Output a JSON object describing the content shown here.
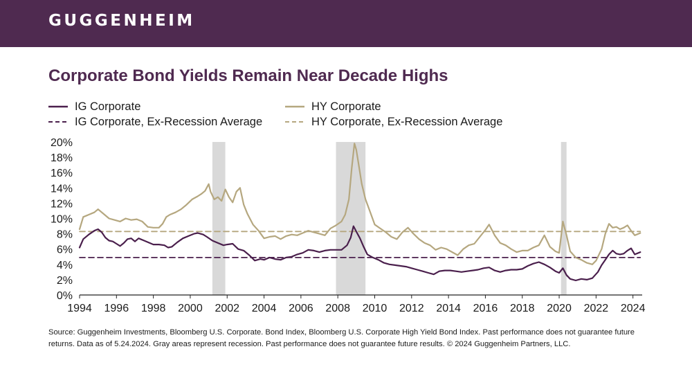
{
  "header": {
    "brand": "GUGGENHEIM"
  },
  "title": "Corporate Bond Yields Remain Near Decade Highs",
  "source_note": "Source: Guggenheim Investments, Bloomberg U.S. Corporate. Bond Index, Bloomberg U.S. Corporate High Yield Bond Index. Past performance does not guarantee future returns. Data as of 5.24.2024. Gray areas represent recession. Past performance does not guarantee future results. © 2024 Guggenheim Partners, LLC.",
  "colors": {
    "brand": "#4f2a50",
    "ig": "#4a1f4c",
    "hy": "#b5a77f",
    "recession": "#d9d9d9"
  },
  "chart_data": {
    "type": "line",
    "title": "Corporate Bond Yields Remain Near Decade Highs",
    "xlabel": "",
    "ylabel": "",
    "xlim": [
      1994,
      2024.5
    ],
    "ylim": [
      0,
      20
    ],
    "x_ticks": [
      1994,
      1996,
      1998,
      2000,
      2002,
      2004,
      2006,
      2008,
      2010,
      2012,
      2014,
      2016,
      2018,
      2020,
      2022,
      2024
    ],
    "x_tick_labels": [
      "1994",
      "1996",
      "1998",
      "2000",
      "2002",
      "2004",
      "2006",
      "2008",
      "2010",
      "2012",
      "2014",
      "2016",
      "2018",
      "2020",
      "2022",
      "2024"
    ],
    "y_ticks": [
      0,
      2,
      4,
      6,
      8,
      10,
      12,
      14,
      16,
      18,
      20
    ],
    "y_tick_labels": [
      "0%",
      "2%",
      "4%",
      "6%",
      "8%",
      "10%",
      "12%",
      "14%",
      "16%",
      "18%",
      "20%"
    ],
    "grid": false,
    "legend_position": "top",
    "recessions": [
      [
        2001.2,
        2001.9
      ],
      [
        2007.9,
        2009.5
      ],
      [
        2020.1,
        2020.4
      ]
    ],
    "series": [
      {
        "name": "IG Corporate",
        "style": "solid",
        "color": "#4a1f4c",
        "x": [
          1994.0,
          1994.2,
          1994.5,
          1994.8,
          1995.0,
          1995.2,
          1995.4,
          1995.6,
          1995.8,
          1996.0,
          1996.2,
          1996.4,
          1996.6,
          1996.8,
          1997.0,
          1997.2,
          1997.5,
          1997.8,
          1998.0,
          1998.3,
          1998.6,
          1998.8,
          1999.0,
          1999.3,
          1999.6,
          1999.9,
          2000.2,
          2000.4,
          2000.7,
          2000.9,
          2001.2,
          2001.5,
          2001.8,
          2002.0,
          2002.3,
          2002.6,
          2002.9,
          2003.2,
          2003.5,
          2003.8,
          2004.0,
          2004.3,
          2004.6,
          2004.9,
          2005.2,
          2005.5,
          2005.8,
          2006.1,
          2006.4,
          2006.7,
          2007.0,
          2007.3,
          2007.6,
          2007.9,
          2008.2,
          2008.5,
          2008.7,
          2008.85,
          2009.0,
          2009.2,
          2009.4,
          2009.6,
          2009.9,
          2010.2,
          2010.5,
          2010.8,
          2011.1,
          2011.4,
          2011.7,
          2012.0,
          2012.3,
          2012.6,
          2012.9,
          2013.2,
          2013.5,
          2013.8,
          2014.1,
          2014.4,
          2014.7,
          2015.0,
          2015.3,
          2015.6,
          2015.9,
          2016.2,
          2016.5,
          2016.8,
          2017.1,
          2017.4,
          2017.7,
          2018.0,
          2018.3,
          2018.6,
          2018.9,
          2019.2,
          2019.5,
          2019.8,
          2020.0,
          2020.2,
          2020.4,
          2020.6,
          2020.9,
          2021.2,
          2021.5,
          2021.8,
          2022.1,
          2022.3,
          2022.5,
          2022.7,
          2022.9,
          2023.1,
          2023.3,
          2023.5,
          2023.7,
          2023.9,
          2024.1,
          2024.3,
          2024.4
        ],
        "y": [
          6.2,
          7.3,
          7.9,
          8.4,
          8.6,
          8.2,
          7.5,
          7.1,
          7.0,
          6.7,
          6.4,
          6.8,
          7.3,
          7.4,
          7.0,
          7.4,
          7.1,
          6.8,
          6.6,
          6.6,
          6.5,
          6.2,
          6.3,
          6.9,
          7.4,
          7.7,
          8.0,
          8.1,
          7.9,
          7.6,
          7.1,
          6.8,
          6.5,
          6.6,
          6.7,
          6.0,
          5.8,
          5.2,
          4.5,
          4.7,
          4.6,
          4.9,
          4.7,
          4.6,
          4.9,
          5.0,
          5.3,
          5.5,
          5.9,
          5.8,
          5.6,
          5.8,
          5.9,
          5.9,
          5.9,
          6.5,
          7.5,
          9.0,
          8.3,
          7.4,
          6.3,
          5.3,
          4.9,
          4.6,
          4.2,
          4.0,
          3.9,
          3.8,
          3.7,
          3.5,
          3.3,
          3.1,
          2.9,
          2.7,
          3.1,
          3.2,
          3.2,
          3.1,
          3.0,
          3.1,
          3.2,
          3.3,
          3.5,
          3.6,
          3.2,
          3.0,
          3.2,
          3.3,
          3.3,
          3.4,
          3.8,
          4.1,
          4.3,
          4.0,
          3.6,
          3.1,
          2.9,
          3.5,
          2.6,
          2.1,
          1.9,
          2.1,
          2.0,
          2.2,
          3.0,
          3.9,
          4.6,
          5.3,
          5.8,
          5.4,
          5.3,
          5.4,
          5.8,
          6.1,
          5.3,
          5.5,
          5.6
        ]
      },
      {
        "name": "HY Corporate",
        "style": "solid",
        "color": "#b5a77f",
        "x": [
          1994.0,
          1994.2,
          1994.5,
          1994.8,
          1995.0,
          1995.3,
          1995.6,
          1995.9,
          1996.2,
          1996.5,
          1996.8,
          1997.1,
          1997.4,
          1997.7,
          1998.0,
          1998.3,
          1998.5,
          1998.7,
          1998.9,
          1999.2,
          1999.5,
          1999.8,
          2000.1,
          2000.4,
          2000.6,
          2000.8,
          2001.0,
          2001.1,
          2001.3,
          2001.5,
          2001.7,
          2001.9,
          2002.1,
          2002.3,
          2002.5,
          2002.7,
          2002.9,
          2003.1,
          2003.4,
          2003.7,
          2004.0,
          2004.3,
          2004.6,
          2004.9,
          2005.2,
          2005.5,
          2005.8,
          2006.1,
          2006.4,
          2006.7,
          2007.0,
          2007.3,
          2007.6,
          2007.9,
          2008.2,
          2008.4,
          2008.6,
          2008.75,
          2008.9,
          2009.0,
          2009.1,
          2009.3,
          2009.5,
          2009.7,
          2010.0,
          2010.3,
          2010.6,
          2010.9,
          2011.2,
          2011.5,
          2011.8,
          2012.1,
          2012.4,
          2012.7,
          2013.0,
          2013.3,
          2013.6,
          2013.9,
          2014.2,
          2014.5,
          2014.8,
          2015.1,
          2015.4,
          2015.7,
          2016.0,
          2016.2,
          2016.5,
          2016.8,
          2017.1,
          2017.4,
          2017.7,
          2018.0,
          2018.3,
          2018.6,
          2018.9,
          2019.2,
          2019.5,
          2019.8,
          2020.0,
          2020.2,
          2020.4,
          2020.6,
          2020.9,
          2021.2,
          2021.5,
          2021.8,
          2022.0,
          2022.3,
          2022.5,
          2022.7,
          2022.9,
          2023.1,
          2023.3,
          2023.5,
          2023.7,
          2023.9,
          2024.1,
          2024.3,
          2024.4
        ],
        "y": [
          8.6,
          10.2,
          10.5,
          10.8,
          11.2,
          10.6,
          10.0,
          9.8,
          9.6,
          10.0,
          9.8,
          9.9,
          9.6,
          8.9,
          8.8,
          8.8,
          9.3,
          10.2,
          10.5,
          10.8,
          11.2,
          11.8,
          12.5,
          12.9,
          13.2,
          13.6,
          14.5,
          13.5,
          12.5,
          12.8,
          12.3,
          13.8,
          12.8,
          12.1,
          13.5,
          14.0,
          11.8,
          10.6,
          9.2,
          8.4,
          7.4,
          7.6,
          7.7,
          7.3,
          7.7,
          7.9,
          7.8,
          8.1,
          8.4,
          8.2,
          8.0,
          7.8,
          8.7,
          9.1,
          9.6,
          10.5,
          12.5,
          16.5,
          19.8,
          19.0,
          17.5,
          14.5,
          12.5,
          11.2,
          9.2,
          8.7,
          8.2,
          7.6,
          7.3,
          8.2,
          8.8,
          8.0,
          7.3,
          6.8,
          6.5,
          5.9,
          6.2,
          6.0,
          5.6,
          5.2,
          6.0,
          6.5,
          6.7,
          7.6,
          8.5,
          9.2,
          7.8,
          6.8,
          6.5,
          6.0,
          5.6,
          5.8,
          5.8,
          6.2,
          6.5,
          7.8,
          6.3,
          5.7,
          5.5,
          9.6,
          7.8,
          5.7,
          4.9,
          4.6,
          4.2,
          4.0,
          4.5,
          6.0,
          8.0,
          9.3,
          8.8,
          8.9,
          8.6,
          8.8,
          9.1,
          8.4,
          7.8,
          8.0,
          8.1
        ]
      },
      {
        "name": "IG Corporate, Ex-Recession Average",
        "style": "dashed",
        "color": "#4a1f4c",
        "x": [
          1994,
          2024.4
        ],
        "y": [
          4.9,
          4.9
        ]
      },
      {
        "name": "HY Corporate, Ex-Recession Average",
        "style": "dashed",
        "color": "#b5a77f",
        "x": [
          1994,
          2024.4
        ],
        "y": [
          8.3,
          8.3
        ]
      }
    ]
  }
}
